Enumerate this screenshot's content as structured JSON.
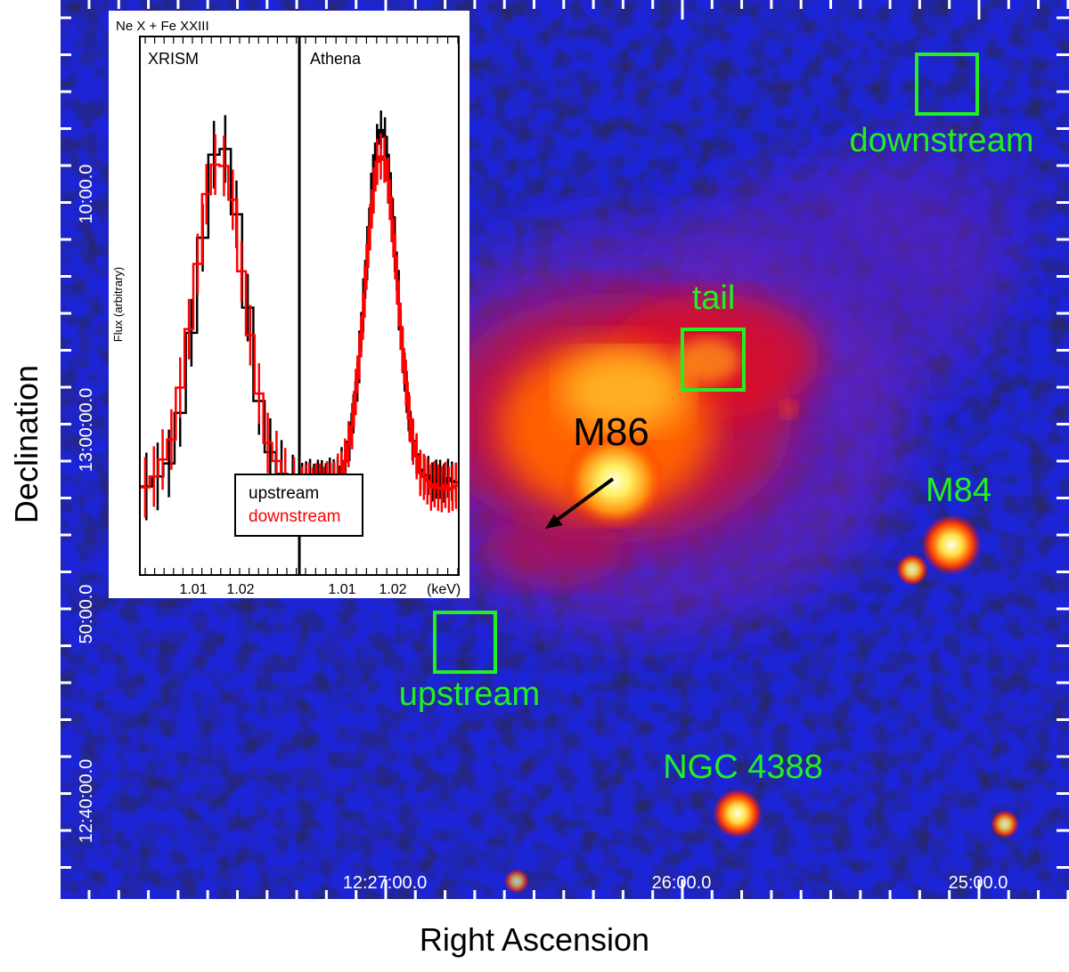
{
  "figure": {
    "x_axis_title": "Right Ascension",
    "y_axis_title": "Declination",
    "ra_tick_labels": [
      "12:27:00.0",
      "26:00.0",
      "25:00.0"
    ],
    "dec_tick_labels": [
      "12:40:00.0",
      "50:00.0",
      "13:00:00.0",
      "10:00.0"
    ],
    "colors": {
      "region_green": "#22ee22",
      "sky_background": "#1820d0"
    }
  },
  "annotations": {
    "region_labels": [
      "downstream",
      "tail",
      "upstream",
      "NGC 4388",
      "M84"
    ],
    "galaxy_label": "M86"
  },
  "inset": {
    "title": "Ne X + Fe XXIII",
    "panels": [
      "XRISM",
      "Athena"
    ],
    "ylabel": "Flux (arbitrary)",
    "x_tick_labels": [
      "1.01",
      "1.02"
    ],
    "x_unit": "(keV)",
    "legend": [
      {
        "label": "upstream",
        "color": "#000000"
      },
      {
        "label": "downstream",
        "color": "#ff0000"
      }
    ]
  }
}
